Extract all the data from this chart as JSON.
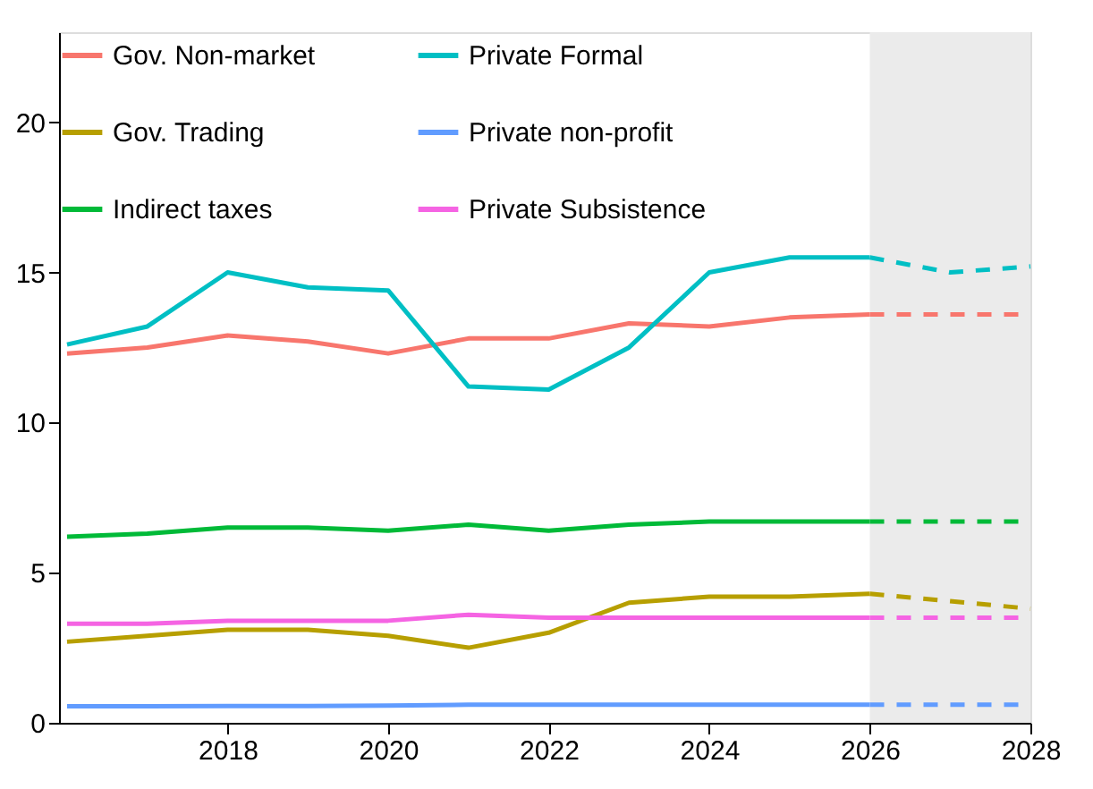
{
  "chart_data": {
    "type": "line",
    "xlim": [
      2015.9,
      2028
    ],
    "ylim": [
      0,
      23
    ],
    "xticks": [
      2018,
      2020,
      2022,
      2024,
      2026,
      2028
    ],
    "yticks": [
      0,
      5,
      10,
      15,
      20
    ],
    "grid": false,
    "legend": "top left",
    "bands": [
      {
        "axis": "x",
        "from": 2026,
        "to": 2028,
        "color": "#ebebeb"
      }
    ],
    "x": [
      2016,
      2017,
      2018,
      2019,
      2020,
      2021,
      2022,
      2023,
      2024,
      2025,
      2026
    ],
    "series": [
      {
        "name": "Gov. Non-market",
        "color": "#f8766d",
        "line_style": "solid",
        "values": [
          12.3,
          12.5,
          12.9,
          12.7,
          12.3,
          12.8,
          12.8,
          13.3,
          13.2,
          13.5,
          13.6
        ]
      },
      {
        "name": "Gov. Trading",
        "color": "#b79f00",
        "line_style": "solid",
        "values": [
          2.7,
          2.9,
          3.1,
          3.1,
          2.9,
          2.5,
          3.0,
          4.0,
          4.2,
          4.2,
          4.3
        ]
      },
      {
        "name": "Indirect taxes",
        "color": "#00ba38",
        "line_style": "solid",
        "values": [
          6.2,
          6.3,
          6.5,
          6.5,
          6.4,
          6.6,
          6.4,
          6.6,
          6.7,
          6.7,
          6.7
        ]
      },
      {
        "name": "Private Formal",
        "color": "#00bfc4",
        "line_style": "solid",
        "values": [
          12.6,
          13.2,
          15.0,
          14.5,
          14.4,
          11.2,
          11.1,
          12.5,
          15.0,
          15.5,
          15.5
        ]
      },
      {
        "name": "Private non-profit",
        "color": "#619cff",
        "line_style": "solid",
        "values": [
          0.55,
          0.55,
          0.56,
          0.56,
          0.57,
          0.6,
          0.6,
          0.6,
          0.6,
          0.6,
          0.6
        ]
      },
      {
        "name": "Private Subsistence",
        "color": "#f564e3",
        "line_style": "solid",
        "values": [
          3.3,
          3.3,
          3.4,
          3.4,
          3.4,
          3.6,
          3.5,
          3.5,
          3.5,
          3.5,
          3.5
        ]
      },
      {
        "color": "#f8766d",
        "line_style": "dashed",
        "x": [
          2026,
          2027,
          2028
        ],
        "values": [
          13.6,
          13.6,
          13.6
        ]
      },
      {
        "color": "#b79f00",
        "line_style": "dashed",
        "x": [
          2026,
          2027,
          2028
        ],
        "values": [
          4.3,
          4.05,
          3.8
        ]
      },
      {
        "color": "#00ba38",
        "line_style": "dashed",
        "x": [
          2026,
          2027,
          2028
        ],
        "values": [
          6.7,
          6.7,
          6.7
        ]
      },
      {
        "color": "#00bfc4",
        "line_style": "dashed",
        "x": [
          2026,
          2027,
          2028
        ],
        "values": [
          15.5,
          15.0,
          15.2
        ]
      },
      {
        "color": "#619cff",
        "line_style": "dashed",
        "x": [
          2026,
          2027,
          2028
        ],
        "values": [
          0.6,
          0.6,
          0.6
        ]
      },
      {
        "color": "#f564e3",
        "line_style": "dashed",
        "x": [
          2026,
          2027,
          2028
        ],
        "values": [
          3.5,
          3.5,
          3.5
        ]
      }
    ]
  }
}
